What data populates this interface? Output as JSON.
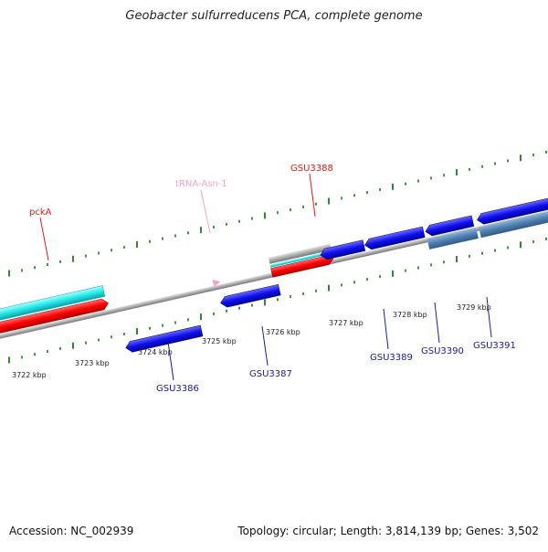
{
  "title": "Geobacter sulfurreducens PCA, complete genome",
  "footer": {
    "accession": "Accession: NC_002939",
    "topology": "Topology: circular; Length: 3,814,139 bp; Genes: 3,502"
  },
  "scale": {
    "ticks": [
      "3722 kbp",
      "3723 kbp",
      "3724 kbp",
      "3725 kbp",
      "3726 kbp",
      "3727 kbp",
      "3728 kbp",
      "3729 kbp"
    ]
  },
  "features": {
    "forward_labels": {
      "pcka": "pckA",
      "trna": "tRNA-Asn-1",
      "gsu3388": "GSU3388"
    },
    "reverse_labels": {
      "gsu3386": "GSU3386",
      "gsu3387": "GSU3387",
      "gsu3389": "GSU3389",
      "gsu3390": "GSU3390",
      "gsu3391": "GSU3391"
    }
  },
  "colors": {
    "forward_label": "#e8191b",
    "trna_label": "#f5a1c5",
    "reverse_label": "#1a1aa8",
    "tick": "#2e8b2e",
    "cds_forward": "#ff0000",
    "cds_reverse": "#1010ee",
    "gene": "#22e8e8",
    "other": "#4f7fb0"
  }
}
